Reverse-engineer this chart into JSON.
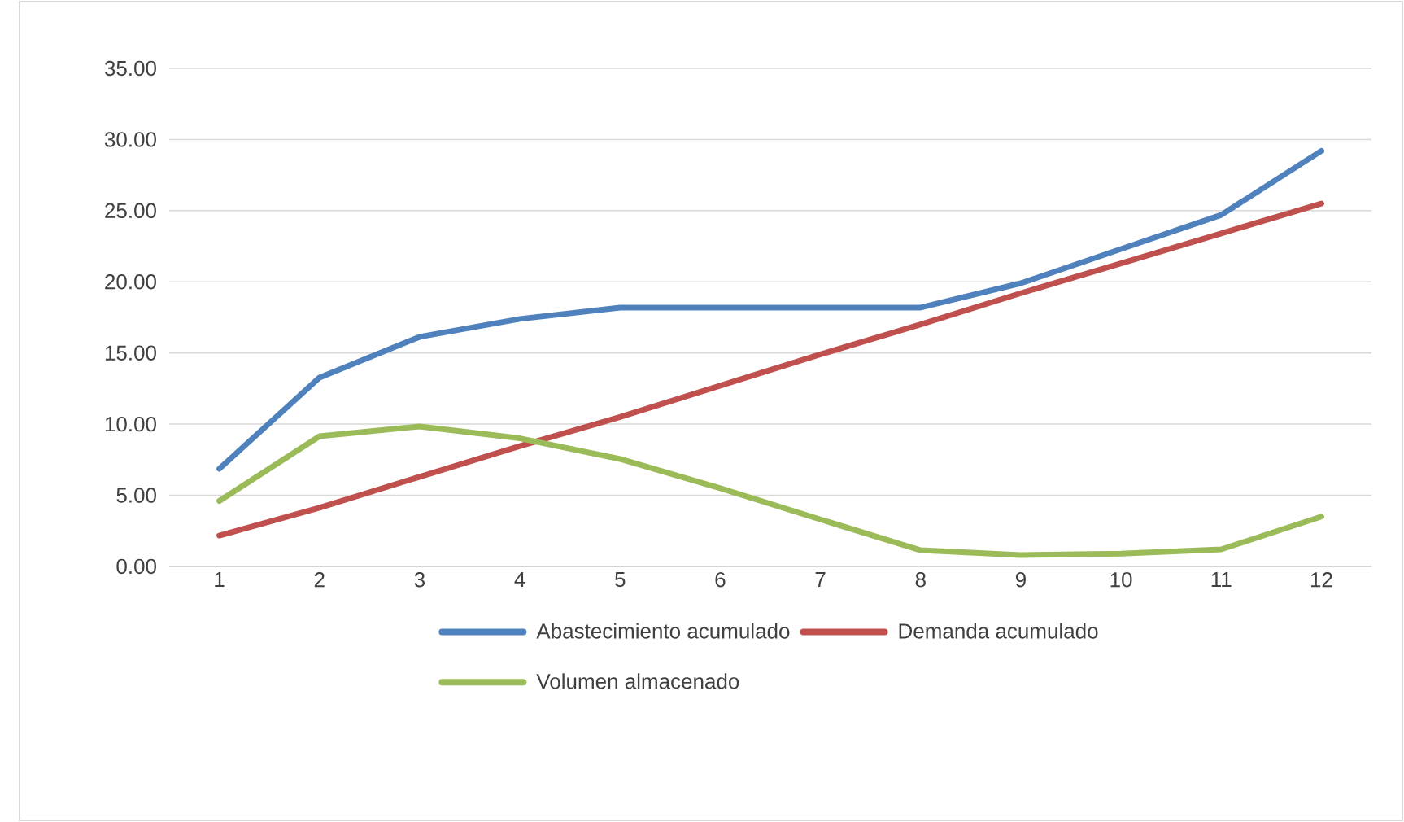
{
  "chart_data": {
    "type": "line",
    "categories": [
      "1",
      "2",
      "3",
      "4",
      "5",
      "6",
      "7",
      "8",
      "9",
      "10",
      "11",
      "12"
    ],
    "series": [
      {
        "name": "Abastecimiento acumulado",
        "color": "#4f81bd",
        "values": [
          6.86,
          13.27,
          16.13,
          17.39,
          18.19,
          18.19,
          18.19,
          18.19,
          19.9,
          22.3,
          24.7,
          29.2
        ]
      },
      {
        "name": "Demanda acumulado",
        "color": "#c0504d",
        "values": [
          2.17,
          4.12,
          6.3,
          8.46,
          10.5,
          12.7,
          14.9,
          17.0,
          19.2,
          21.3,
          23.4,
          25.5
        ]
      },
      {
        "name": "Volumen almacenado",
        "color": "#9bbb59",
        "values": [
          4.6,
          9.15,
          9.84,
          9.0,
          7.55,
          5.5,
          3.3,
          1.14,
          0.8,
          0.9,
          1.2,
          3.5
        ]
      }
    ],
    "ylim": [
      0,
      35
    ],
    "yticks": [
      {
        "value": 0,
        "label": "0.00"
      },
      {
        "value": 5,
        "label": "5.00"
      },
      {
        "value": 10,
        "label": "10.00"
      },
      {
        "value": 15,
        "label": "15.00"
      },
      {
        "value": 20,
        "label": "20.00"
      },
      {
        "value": 25,
        "label": "25.00"
      },
      {
        "value": 30,
        "label": "30.00"
      },
      {
        "value": 35,
        "label": "35.00"
      }
    ],
    "grid": "y",
    "legend": "bottom",
    "marker": "none",
    "line_style": "solid"
  }
}
